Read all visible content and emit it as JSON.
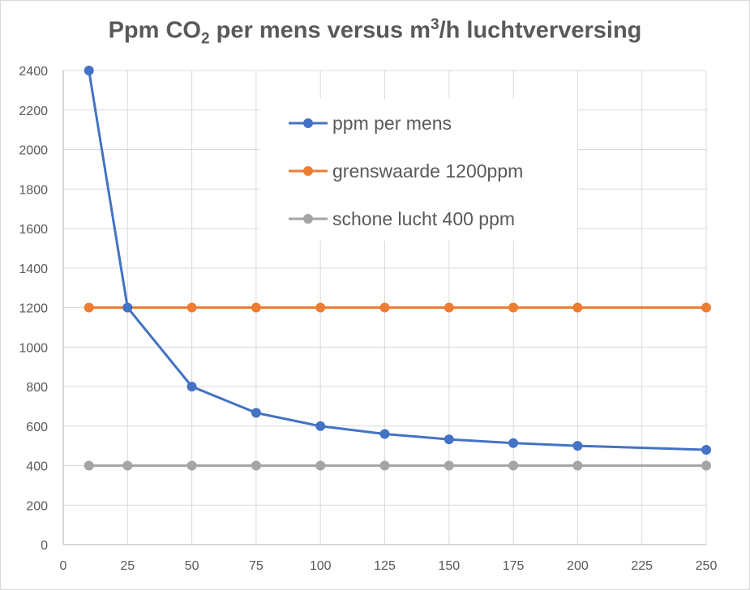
{
  "chart_data": {
    "type": "line",
    "title": {
      "part1": "Ppm CO",
      "sub": "2",
      "part2": " per mens versus m",
      "sup": "3",
      "part3": "/h luchtverversing"
    },
    "xlabel": "",
    "ylabel": "",
    "xlim": [
      0,
      250
    ],
    "ylim": [
      0,
      2400
    ],
    "x_ticks": [
      0,
      25,
      50,
      75,
      100,
      125,
      150,
      175,
      200,
      225,
      250
    ],
    "y_ticks": [
      0,
      200,
      400,
      600,
      800,
      1000,
      1200,
      1400,
      1600,
      1800,
      2000,
      2200,
      2400
    ],
    "grid": true,
    "legend_position": "top-right",
    "series": [
      {
        "name": "ppm per mens",
        "color": "#4472c4",
        "x": [
          10,
          25,
          50,
          75,
          100,
          125,
          150,
          175,
          200,
          250
        ],
        "y": [
          2400,
          1200,
          800,
          667,
          600,
          560,
          533,
          514,
          500,
          480
        ]
      },
      {
        "name": "grenswaarde 1200ppm",
        "color": "#ed7d31",
        "x": [
          10,
          25,
          50,
          75,
          100,
          125,
          150,
          175,
          200,
          250
        ],
        "y": [
          1200,
          1200,
          1200,
          1200,
          1200,
          1200,
          1200,
          1200,
          1200,
          1200
        ]
      },
      {
        "name": "schone lucht 400 ppm",
        "color": "#a5a5a5",
        "x": [
          10,
          25,
          50,
          75,
          100,
          125,
          150,
          175,
          200,
          250
        ],
        "y": [
          400,
          400,
          400,
          400,
          400,
          400,
          400,
          400,
          400,
          400
        ]
      }
    ]
  }
}
